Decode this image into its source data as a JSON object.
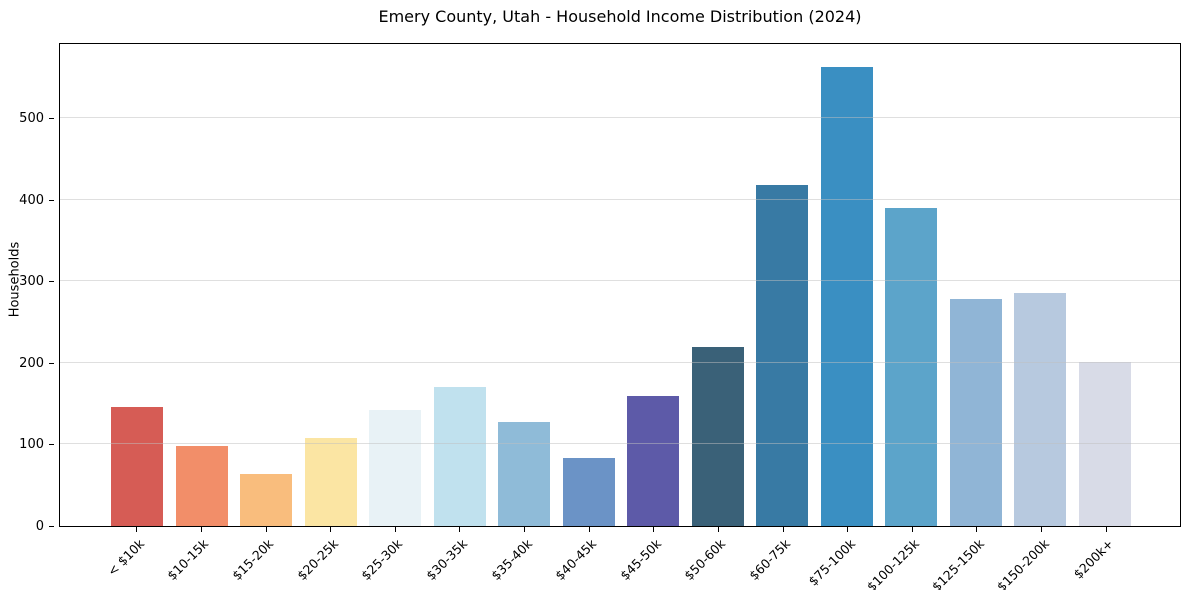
{
  "chart_data": {
    "type": "bar",
    "title": "Emery County, Utah - Household Income Distribution (2024)",
    "xlabel": "",
    "ylabel": "Households",
    "categories": [
      "< $10k",
      "$10-15k",
      "$15-20k",
      "$20-25k",
      "$25-30k",
      "$30-35k",
      "$35-40k",
      "$40-45k",
      "$45-50k",
      "$50-60k",
      "$60-75k",
      "$75-100k",
      "$100-125k",
      "$125-150k",
      "$150-200k",
      "$200k+"
    ],
    "values": [
      146,
      98,
      64,
      108,
      142,
      170,
      127,
      83,
      159,
      219,
      418,
      562,
      390,
      278,
      286,
      201
    ],
    "bar_colors": [
      "#d65c55",
      "#f28e69",
      "#f9bd7d",
      "#fbe5a3",
      "#e8f2f6",
      "#c0e1ee",
      "#8fbbd8",
      "#6b93c6",
      "#5d5aa8",
      "#3a6178",
      "#387aa4",
      "#3a8fc2",
      "#5ca4ca",
      "#90b5d6",
      "#b7c9df",
      "#d8dbe7"
    ],
    "yticks": [
      0,
      100,
      200,
      300,
      400,
      500
    ],
    "ylim": [
      0,
      593
    ],
    "grid": "horizontal-only",
    "legend": "none",
    "plot_border_color": "#000000",
    "gridline_color": "#c8c8c8",
    "background_color": "#ffffff"
  }
}
